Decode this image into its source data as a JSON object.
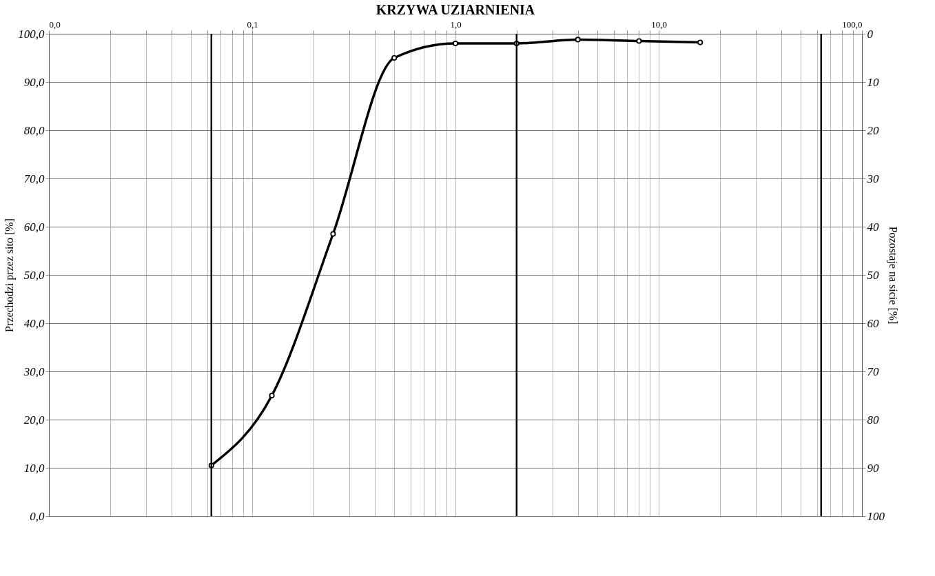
{
  "chart_data": {
    "type": "line",
    "title": "KRZYWA UZIARNIENIA",
    "ylabel": "Przechodzi przez sito [%]",
    "y2label": "Pozostaje na sicie [%]",
    "x": [
      0.063,
      0.125,
      0.25,
      0.5,
      1,
      2,
      4,
      8,
      16
    ],
    "series": [
      {
        "color": "#000000",
        "values": [
          10.5,
          25.0,
          58.5,
          95.0,
          98.0,
          98.0,
          98.8,
          98.5,
          98.2
        ]
      }
    ],
    "log": "x",
    "xlim": [
      0.01,
      100
    ],
    "ylim": [
      0,
      100
    ],
    "y2lim": [
      100,
      0
    ],
    "xticks": [
      {
        "value": 0.01,
        "label": "0,0"
      },
      {
        "value": 0.02,
        "label": null
      },
      {
        "value": 0.03,
        "label": null
      },
      {
        "value": 0.04,
        "label": null
      },
      {
        "value": 0.05,
        "label": null
      },
      {
        "value": 0.06,
        "label": null
      },
      {
        "value": 0.07,
        "label": null
      },
      {
        "value": 0.08,
        "label": null
      },
      {
        "value": 0.09,
        "label": null
      },
      {
        "value": 0.1,
        "label": "0,1"
      },
      {
        "value": 0.2,
        "label": null
      },
      {
        "value": 0.3,
        "label": null
      },
      {
        "value": 0.4,
        "label": null
      },
      {
        "value": 0.5,
        "label": null
      },
      {
        "value": 0.6,
        "label": null
      },
      {
        "value": 0.7,
        "label": null
      },
      {
        "value": 0.8,
        "label": null
      },
      {
        "value": 0.9,
        "label": null
      },
      {
        "value": 1,
        "label": "1,0"
      },
      {
        "value": 2,
        "label": null
      },
      {
        "value": 3,
        "label": null
      },
      {
        "value": 4,
        "label": null
      },
      {
        "value": 5,
        "label": null
      },
      {
        "value": 6,
        "label": null
      },
      {
        "value": 7,
        "label": null
      },
      {
        "value": 8,
        "label": null
      },
      {
        "value": 9,
        "label": null
      },
      {
        "value": 10,
        "label": "10,0"
      },
      {
        "value": 20,
        "label": null
      },
      {
        "value": 30,
        "label": null
      },
      {
        "value": 40,
        "label": null
      },
      {
        "value": 50,
        "label": null
      },
      {
        "value": 60,
        "label": null
      },
      {
        "value": 70,
        "label": null
      },
      {
        "value": 80,
        "label": null
      },
      {
        "value": 90,
        "label": null
      },
      {
        "value": 100,
        "label": "100,0"
      }
    ],
    "yticks": [
      {
        "value": 0,
        "label": "0,0"
      },
      {
        "value": 10,
        "label": "10,0"
      },
      {
        "value": 20,
        "label": "20,0"
      },
      {
        "value": 30,
        "label": "30,0"
      },
      {
        "value": 40,
        "label": "40,0"
      },
      {
        "value": 50,
        "label": "50,0"
      },
      {
        "value": 60,
        "label": "60,0"
      },
      {
        "value": 70,
        "label": "70,0"
      },
      {
        "value": 80,
        "label": "80,0"
      },
      {
        "value": 90,
        "label": "90,0"
      },
      {
        "value": 100,
        "label": "100,0"
      }
    ],
    "y2ticks": [
      0,
      10,
      20,
      30,
      40,
      50,
      60,
      70,
      80,
      90,
      100
    ],
    "ref_lines": [
      {
        "axis": "x",
        "value": 0.063,
        "color": "#000000"
      },
      {
        "axis": "x",
        "value": 2,
        "color": "#000000"
      },
      {
        "axis": "x",
        "value": 63,
        "color": "#000000"
      }
    ],
    "grid": true,
    "marker": "circle",
    "line_style": "solid"
  }
}
